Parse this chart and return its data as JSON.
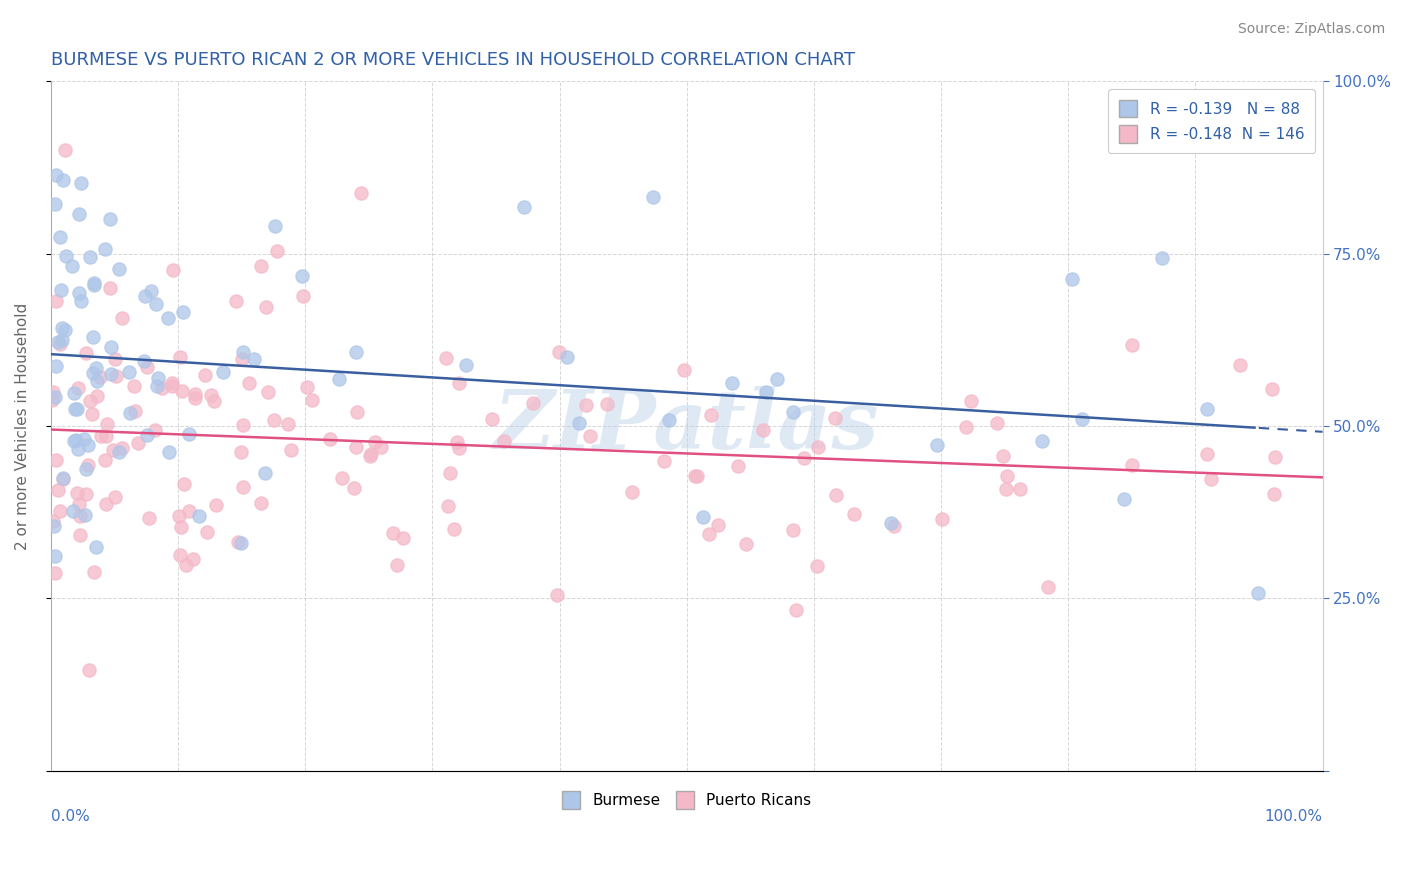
{
  "title": "BURMESE VS PUERTO RICAN 2 OR MORE VEHICLES IN HOUSEHOLD CORRELATION CHART",
  "source_text": "Source: ZipAtlas.com",
  "ylabel": "2 or more Vehicles in Household",
  "burmese_color": "#aec6e8",
  "puerto_rican_color": "#f4b8c8",
  "burmese_line_color": "#3a5fa0",
  "puerto_rican_line_color": "#e05080",
  "legend_box_blue": "#aec6e8",
  "legend_box_pink": "#f4b8c8",
  "R_burmese": -0.139,
  "N_burmese": 88,
  "R_puerto_rican": -0.148,
  "N_puerto_rican": 146,
  "watermark_text": "ZIPatlas",
  "title_color": "#3060a8",
  "source_color": "#888888",
  "axis_label_color": "#666666",
  "right_tick_color": "#4472c4",
  "xlim": [
    0,
    100
  ],
  "ylim": [
    0,
    100
  ],
  "background_color": "#ffffff",
  "grid_color": "#cccccc",
  "burmese_seed": 77,
  "pr_seed": 55
}
